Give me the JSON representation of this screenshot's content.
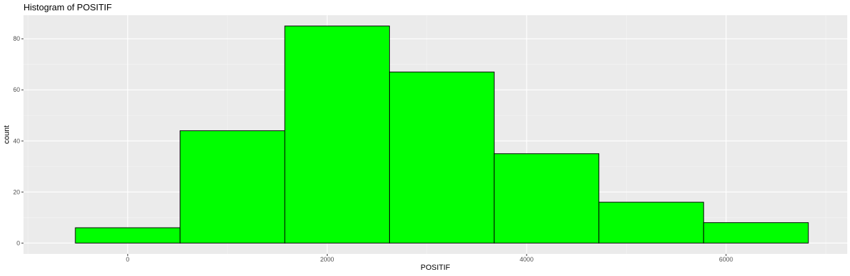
{
  "chart_data": {
    "type": "bar",
    "title": "Histogram of POSITIF",
    "xlabel": "POSITIF",
    "ylabel": "count",
    "bins": [
      {
        "x_start": -525,
        "x_end": 525,
        "count": 6
      },
      {
        "x_start": 525,
        "x_end": 1575,
        "count": 44
      },
      {
        "x_start": 1575,
        "x_end": 2625,
        "count": 85
      },
      {
        "x_start": 2625,
        "x_end": 3675,
        "count": 67
      },
      {
        "x_start": 3675,
        "x_end": 4725,
        "count": 35
      },
      {
        "x_start": 4725,
        "x_end": 5775,
        "count": 16
      },
      {
        "x_start": 5775,
        "x_end": 6825,
        "count": 8
      }
    ],
    "xlim": [
      -1045,
      7215
    ],
    "ylim": [
      -4.25,
      89.25
    ],
    "x_ticks": [
      0,
      2000,
      4000,
      6000
    ],
    "x_minor_ticks": [
      -1000,
      1000,
      3000,
      5000,
      7000
    ],
    "y_ticks": [
      0,
      20,
      40,
      60,
      80
    ],
    "y_minor_ticks": [
      10,
      30,
      50,
      70
    ],
    "x_tick_labels": [
      "0",
      "2000",
      "4000",
      "6000"
    ],
    "y_tick_labels": [
      "0",
      "20",
      "40",
      "60",
      "80"
    ],
    "grid": true,
    "colors": {
      "bar_fill": "#00ff00",
      "bar_stroke": "#000000",
      "panel_background": "#ebebeb",
      "grid_major": "#ffffff",
      "grid_minor": "#f5f5f5"
    }
  }
}
